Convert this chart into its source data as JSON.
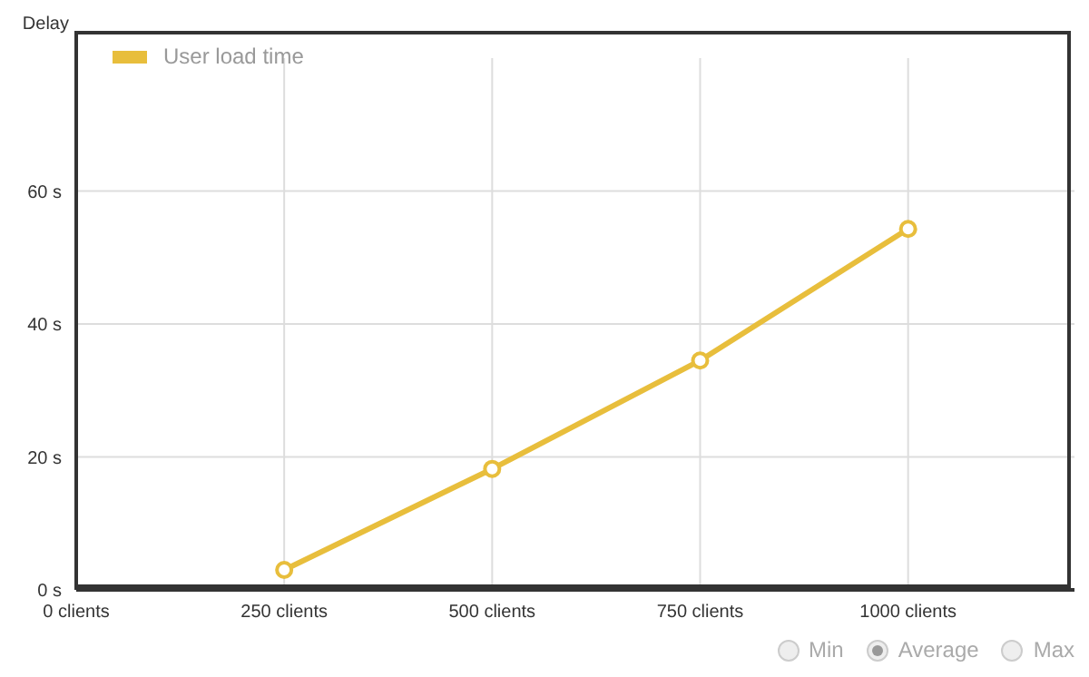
{
  "chart_data": {
    "type": "line",
    "ylabel": "Delay",
    "x": [
      250,
      500,
      750,
      1000
    ],
    "series": [
      {
        "name": "User load time",
        "color": "#e8be3c",
        "values": [
          3,
          18.2,
          34.5,
          54.3
        ]
      }
    ],
    "xlim": [
      0,
      1200
    ],
    "xticks": [
      {
        "value": 0,
        "label": "0 clients"
      },
      {
        "value": 250,
        "label": "250 clients"
      },
      {
        "value": 500,
        "label": "500 clients"
      },
      {
        "value": 750,
        "label": "750 clients"
      },
      {
        "value": 1000,
        "label": "1000 clients"
      }
    ],
    "ylim": [
      0,
      80
    ],
    "yticks": [
      {
        "value": 0,
        "label": "0 s"
      },
      {
        "value": 20,
        "label": "20 s"
      },
      {
        "value": 40,
        "label": "40 s"
      },
      {
        "value": 60,
        "label": "60 s"
      }
    ],
    "grid": true,
    "legend": "top left",
    "marker": "circle",
    "line_style": "solid",
    "annotations": [
      "Min",
      "Average",
      "Max"
    ]
  }
}
